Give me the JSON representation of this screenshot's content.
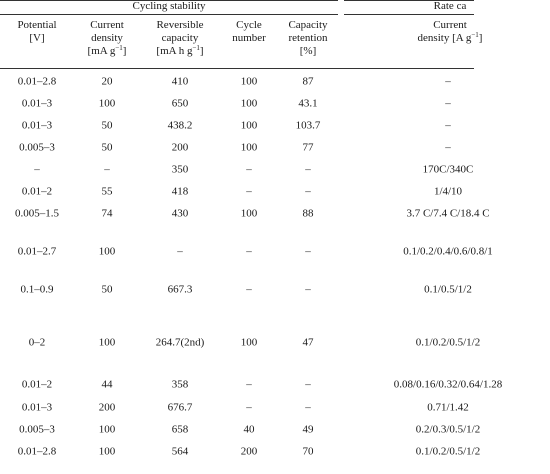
{
  "group_headers": {
    "cycling": "Cycling stability",
    "rate": "Rate ca"
  },
  "columns": [
    {
      "line1": "Potential",
      "line2": "[V]",
      "sup": ""
    },
    {
      "line1": "Current",
      "line2": "density",
      "line3_pre": "[mA g",
      "sup": "−1",
      "line3_post": "]"
    },
    {
      "line1": "Reversible",
      "line2": "capacity",
      "line3_pre": "[mA h g",
      "sup": "−1",
      "line3_post": "]"
    },
    {
      "line1": "Cycle",
      "line2": "number"
    },
    {
      "line1": "Capacity",
      "line2": "retention",
      "line3": "[%]"
    },
    {
      "line1": "Current",
      "line2_pre": "density [A g",
      "sup": "−1",
      "line2_post": "]"
    }
  ],
  "rows": [
    [
      "0.01–2.8",
      "20",
      "410",
      "100",
      "87",
      "–"
    ],
    [
      "0.01–3",
      "100",
      "650",
      "100",
      "43.1",
      "–"
    ],
    [
      "0.01–3",
      "50",
      "438.2",
      "100",
      "103.7",
      "–"
    ],
    [
      "0.005–3",
      "50",
      "200",
      "100",
      "77",
      "–"
    ],
    [
      "–",
      "–",
      "350",
      "–",
      "–",
      "170C/340C"
    ],
    [
      "0.01–2",
      "55",
      "418",
      "–",
      "–",
      "1/4/10"
    ],
    [
      "0.005–1.5",
      "74",
      "430",
      "100",
      "88",
      "3.7 C/7.4 C/18.4 C"
    ],
    [
      "0.01–2.7",
      "100",
      "–",
      "–",
      "–",
      "0.1/0.2/0.4/0.6/0.8/1"
    ],
    [
      "0.1–0.9",
      "50",
      "667.3",
      "–",
      "–",
      "0.1/0.5/1/2"
    ],
    [
      "0–2",
      "100",
      "264.7(2nd)",
      "100",
      "47",
      "0.1/0.2/0.5/1/2"
    ],
    [
      "0.01–2",
      "44",
      "358",
      "–",
      "–",
      "0.08/0.16/0.32/0.64/1.28"
    ],
    [
      "0.01–3",
      "200",
      "676.7",
      "–",
      "–",
      "0.71/1.42"
    ],
    [
      "0.005–3",
      "100",
      "658",
      "40",
      "49",
      "0.2/0.3/0.5/1/2"
    ],
    [
      "0.01–2.8",
      "100",
      "564",
      "200",
      "70",
      "0.1/0.2/0.5/1/2"
    ]
  ]
}
